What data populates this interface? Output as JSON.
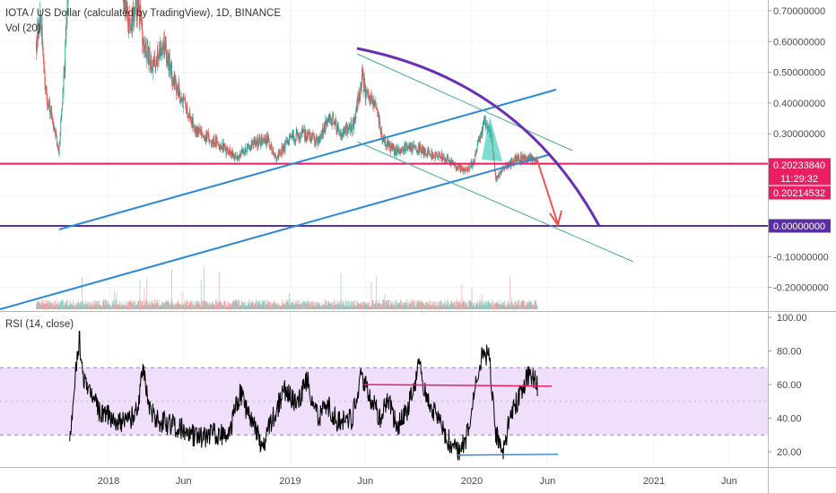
{
  "chart_header": {
    "symbol_line": "IOTA / US Dollar (calculated by TradingView), 1D, BINANCE",
    "volume_label": "Vol (20)",
    "rsi_label": "RSI (14, close)"
  },
  "chart_data": [
    {
      "type": "candlestick",
      "title": "IOTA / US Dollar (calculated by TradingView), 1D, BINANCE",
      "y_tick_labels": [
        "0.70000000",
        "0.60000000",
        "0.50000000",
        "0.40000000",
        "0.30000000",
        "0.20000000",
        "0.10000000",
        "0.00000000",
        "-0.10000000",
        "-0.20000000"
      ],
      "ylim": [
        -0.25,
        0.74
      ],
      "x_tick_labels": [
        "2018",
        "Jun",
        "2019",
        "Jun",
        "2020",
        "Jun",
        "2021",
        "Jun"
      ],
      "price_tags": [
        {
          "label": "0.20233840",
          "color": "#e91e63"
        },
        {
          "label": "11:29:32",
          "color": "#e91e63"
        },
        {
          "label": "0.20214532",
          "color": "#e91e63"
        },
        {
          "label": "0.00000000",
          "color": "#5b2fa3"
        }
      ],
      "horizontal_levels": [
        {
          "value": 0.2023,
          "color": "#e91e63"
        },
        {
          "value": 0.0,
          "color": "#5b2fa3"
        }
      ],
      "up_color": "#26a69a",
      "down_color": "#ef5350",
      "trend_color": "#2a8ad8",
      "arc_color": "#6a2fb5",
      "projection_color": "#ef5350"
    },
    {
      "type": "line",
      "title": "RSI (14, close)",
      "y_tick_labels": [
        "100.00",
        "80.00",
        "60.00",
        "40.00",
        "20.00"
      ],
      "ylim": [
        10,
        100
      ],
      "band": [
        30,
        70
      ],
      "band_color": "#e9d4f8",
      "line_color": "#000000",
      "resistance_color": "#e91e63",
      "support_color": "#2a8ad8"
    }
  ],
  "style": {
    "grid": true,
    "background": "#ffffff"
  }
}
